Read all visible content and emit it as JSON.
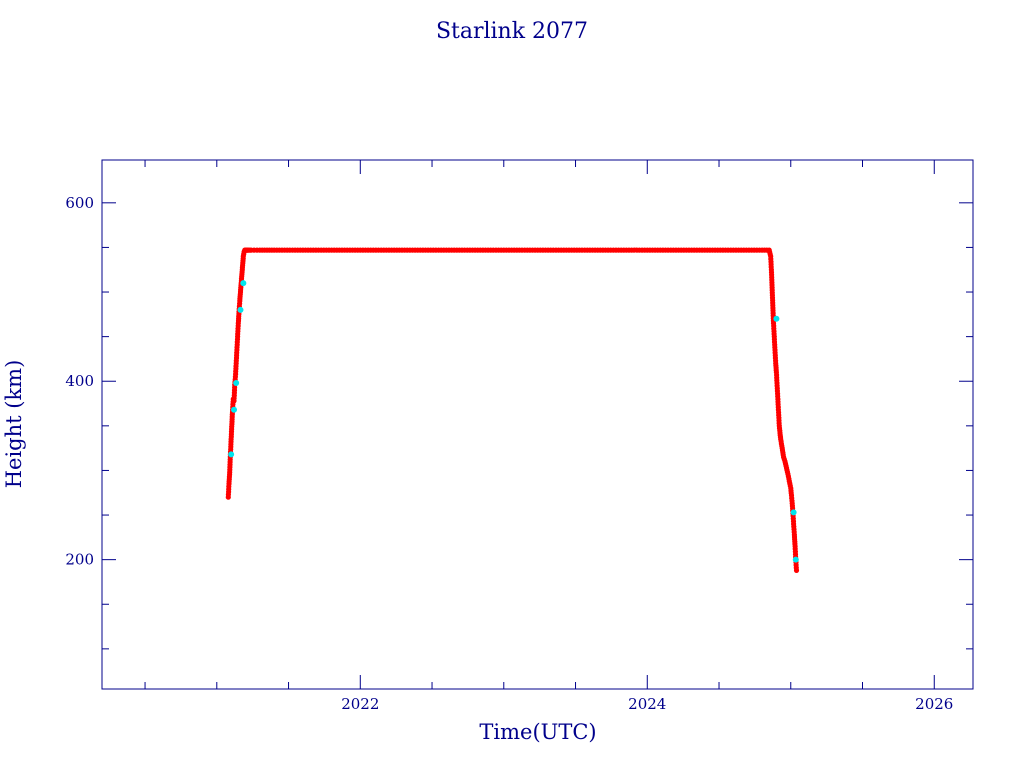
{
  "chart_data": {
    "type": "scatter",
    "title": "Starlink 2077",
    "xlabel": "Time(UTC)",
    "ylabel": "Height (km)",
    "xlim": [
      2020.2,
      2026.27
    ],
    "ylim": [
      55,
      648
    ],
    "x_ticks": [
      2022,
      2024,
      2026
    ],
    "x_minor_ticks": [
      2020.5,
      2021,
      2021.5,
      2022.5,
      2023,
      2023.5,
      2024.5,
      2025,
      2025.5
    ],
    "y_ticks": [
      200,
      400,
      600
    ],
    "y_minor_ticks": [
      100,
      150,
      250,
      300,
      350,
      450,
      500,
      550
    ],
    "grid": false,
    "legend": "none",
    "colors": {
      "axis": "#00008b",
      "points": "#ff0000",
      "markers": "#00e5ee",
      "line": "#555555"
    },
    "series": [
      {
        "x": [
          2021.08,
          2021.085,
          2021.09,
          2021.095,
          2021.1,
          2021.105,
          2021.11,
          2021.115,
          2021.12,
          2021.125,
          2021.13,
          2021.135,
          2021.14,
          2021.145,
          2021.15,
          2021.155,
          2021.16,
          2021.165,
          2021.17,
          2021.175,
          2021.18,
          2021.185,
          2021.19,
          2021.195,
          2021.2,
          2021.205,
          2021.21,
          2021.215,
          2021.22,
          2021.23,
          2021.24,
          2021.26,
          2021.3,
          2021.4,
          2021.6,
          2021.8,
          2022.0,
          2022.2,
          2022.4,
          2022.6,
          2022.8,
          2023.0,
          2023.2,
          2023.4,
          2023.6,
          2023.8,
          2024.0,
          2024.2,
          2024.4,
          2024.6,
          2024.8,
          2024.85,
          2024.86,
          2024.865,
          2024.87,
          2024.875,
          2024.88,
          2024.885,
          2024.89,
          2024.895,
          2024.9,
          2024.905,
          2024.91,
          2024.915,
          2024.92,
          2024.925,
          2024.93,
          2024.935,
          2024.94,
          2024.945,
          2024.95,
          2024.96,
          2024.97,
          2024.98,
          2024.99,
          2025.0,
          2025.005,
          2025.01,
          2025.015,
          2025.02,
          2025.025,
          2025.03,
          2025.035,
          2025.04
        ],
        "y": [
          270,
          285,
          298,
          318,
          335,
          352,
          368,
          380,
          378,
          396,
          405,
          420,
          435,
          450,
          465,
          478,
          490,
          500,
          510,
          520,
          530,
          540,
          545,
          547,
          547,
          547,
          547,
          547,
          547,
          547,
          547,
          547,
          547,
          547,
          547,
          547,
          547,
          547,
          547,
          547,
          547,
          547,
          547,
          547,
          547,
          547,
          547,
          547,
          547,
          547,
          547,
          547,
          540,
          525,
          505,
          485,
          465,
          450,
          435,
          420,
          410,
          395,
          380,
          365,
          350,
          342,
          335,
          330,
          325,
          320,
          315,
          310,
          303,
          296,
          288,
          280,
          272,
          263,
          252,
          240,
          228,
          215,
          200,
          188
        ],
        "highlights": [
          [
            2021.1,
            318
          ],
          [
            2021.12,
            368
          ],
          [
            2021.135,
            398
          ],
          [
            2021.165,
            480
          ],
          [
            2021.185,
            510
          ],
          [
            2024.9,
            470
          ],
          [
            2025.02,
            253
          ],
          [
            2025.035,
            200
          ]
        ]
      }
    ]
  }
}
